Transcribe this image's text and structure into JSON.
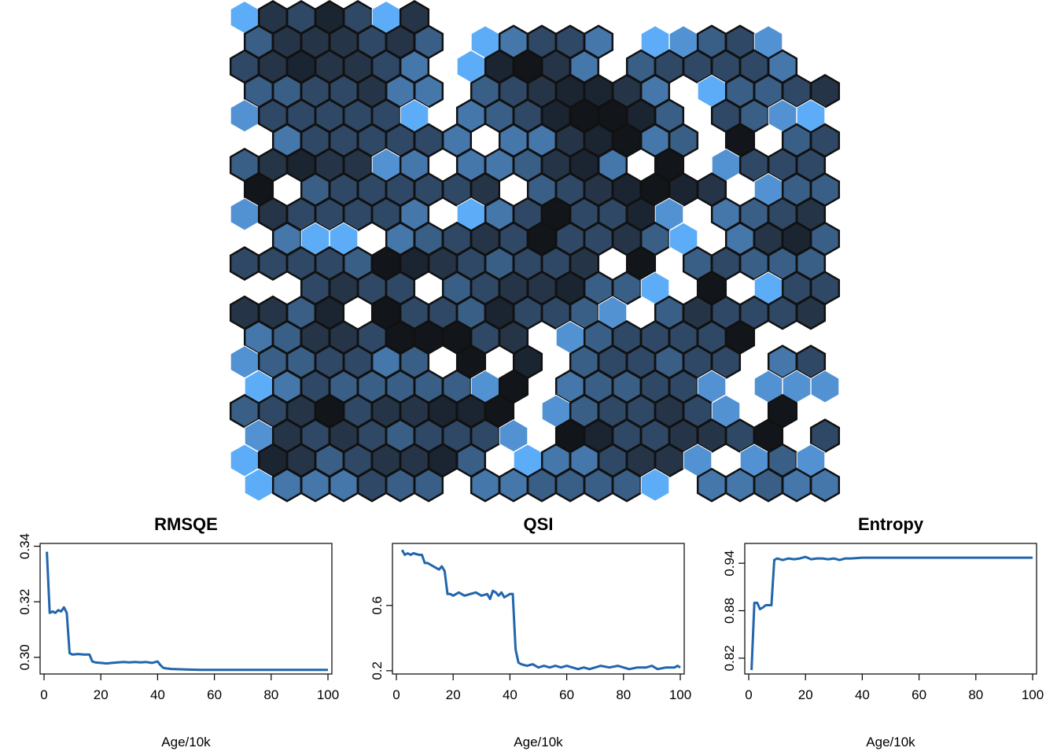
{
  "hexmap": {
    "palette": [
      "#5cacf8",
      "#5292d2",
      "#4677ab",
      "#3a5f86",
      "#2f4865",
      "#253547",
      "#1b2431",
      "#121519"
    ],
    "rows": [
      "0546405",
      "3555453.02442.01341",
      "4565542.06752.344442",
      "3344522.3456652.0334543.7.",
      "1444440.23467763.4310.33331",
      ".2444442.2256723.7.34443",
      "3565512.223562.7.14445",
      "7.3444445.3456765.13343",
      "1544442.02474461.23456",
      ".200.23454744530.2563421",
      "4444376543445.7.3433334",
      "..4544.34556330.7.04444",
      "5536.744364431.3544453",
      "2355477745.1344447.",
      "1334423.7.6.344344.24654",
      "0243333317.233441.111231",
      "3457455667.1344541.7.0203222",
      "1545434441.76445547.4330",
      "065345563.0224551.131133",
      "0222433.2233330.22322"
    ],
    "notes": "row strings encode hex shade index 0-7 (0 lightest, 7 darkest); '.' marks empty slots"
  },
  "chart_data": [
    {
      "type": "line",
      "title": "RMSQE",
      "xlabel": "Age/10k",
      "ylabel": "",
      "xlim": [
        0,
        100
      ],
      "ylim": [
        0.294,
        0.341
      ],
      "xticks": [
        "0",
        "20",
        "40",
        "60",
        "80",
        "100"
      ],
      "yticks": [
        "0.30",
        "0.32",
        "0.34"
      ],
      "ytick_values": [
        0.3,
        0.32,
        0.34
      ],
      "color": "#2166ac",
      "x": [
        1,
        2,
        3,
        4,
        5,
        6,
        7,
        8,
        9,
        10,
        12,
        14,
        16,
        17,
        18,
        20,
        22,
        24,
        26,
        28,
        30,
        32,
        34,
        36,
        38,
        40,
        41,
        42,
        43,
        45,
        50,
        55,
        60,
        65,
        70,
        75,
        80,
        85,
        90,
        95,
        100
      ],
      "y": [
        0.338,
        0.316,
        0.3165,
        0.316,
        0.317,
        0.3165,
        0.318,
        0.316,
        0.3015,
        0.301,
        0.3012,
        0.301,
        0.301,
        0.2985,
        0.2982,
        0.298,
        0.2978,
        0.298,
        0.2982,
        0.2983,
        0.2982,
        0.2983,
        0.2982,
        0.2983,
        0.298,
        0.2985,
        0.2972,
        0.2962,
        0.296,
        0.2958,
        0.2956,
        0.2955,
        0.2955,
        0.2955,
        0.2955,
        0.2955,
        0.2955,
        0.2955,
        0.2955,
        0.2955,
        0.2955
      ]
    },
    {
      "type": "line",
      "title": "QSI",
      "xlabel": "Age/10k",
      "ylabel": "",
      "xlim": [
        0,
        100
      ],
      "ylim": [
        0.18,
        0.98
      ],
      "xticks": [
        "0",
        "20",
        "40",
        "60",
        "80",
        "100"
      ],
      "yticks": [
        "0.2",
        "0.6"
      ],
      "ytick_values": [
        0.2,
        0.6
      ],
      "color": "#2166ac",
      "x": [
        2,
        3,
        4,
        5,
        6,
        8,
        9,
        10,
        11,
        12,
        13,
        15,
        16,
        17,
        18,
        19,
        20,
        22,
        24,
        26,
        28,
        30,
        32,
        33,
        34,
        35,
        36,
        37,
        38,
        40,
        41,
        42,
        43,
        44,
        46,
        48,
        50,
        52,
        54,
        56,
        58,
        60,
        62,
        64,
        66,
        68,
        70,
        72,
        75,
        78,
        80,
        82,
        85,
        88,
        90,
        92,
        95,
        98,
        99,
        100
      ],
      "y": [
        0.94,
        0.91,
        0.92,
        0.91,
        0.92,
        0.91,
        0.91,
        0.86,
        0.86,
        0.85,
        0.84,
        0.82,
        0.84,
        0.81,
        0.67,
        0.67,
        0.66,
        0.68,
        0.66,
        0.67,
        0.68,
        0.66,
        0.67,
        0.64,
        0.69,
        0.68,
        0.66,
        0.68,
        0.65,
        0.67,
        0.67,
        0.33,
        0.25,
        0.24,
        0.23,
        0.24,
        0.22,
        0.23,
        0.22,
        0.23,
        0.22,
        0.23,
        0.22,
        0.21,
        0.22,
        0.21,
        0.22,
        0.23,
        0.22,
        0.23,
        0.22,
        0.21,
        0.22,
        0.22,
        0.23,
        0.21,
        0.22,
        0.22,
        0.23,
        0.22
      ]
    },
    {
      "type": "line",
      "title": "Entropy",
      "xlabel": "Age/10k",
      "ylabel": "",
      "xlim": [
        0,
        100
      ],
      "ylim": [
        0.8,
        0.965
      ],
      "xticks": [
        "0",
        "20",
        "40",
        "60",
        "80",
        "100"
      ],
      "yticks": [
        "0.82",
        "0.88",
        "0.94"
      ],
      "ytick_values": [
        0.82,
        0.88,
        0.94
      ],
      "color": "#2166ac",
      "x": [
        1,
        2,
        3,
        4,
        5,
        6,
        7,
        8,
        9,
        10,
        12,
        14,
        16,
        18,
        20,
        22,
        24,
        26,
        28,
        30,
        32,
        34,
        36,
        40,
        45,
        50,
        55,
        60,
        65,
        70,
        75,
        80,
        85,
        90,
        95,
        100
      ],
      "y": [
        0.805,
        0.89,
        0.89,
        0.882,
        0.884,
        0.887,
        0.887,
        0.887,
        0.944,
        0.946,
        0.944,
        0.946,
        0.945,
        0.946,
        0.948,
        0.945,
        0.946,
        0.946,
        0.945,
        0.946,
        0.944,
        0.946,
        0.946,
        0.947,
        0.947,
        0.947,
        0.947,
        0.947,
        0.947,
        0.947,
        0.947,
        0.947,
        0.947,
        0.947,
        0.947,
        0.947
      ]
    }
  ]
}
